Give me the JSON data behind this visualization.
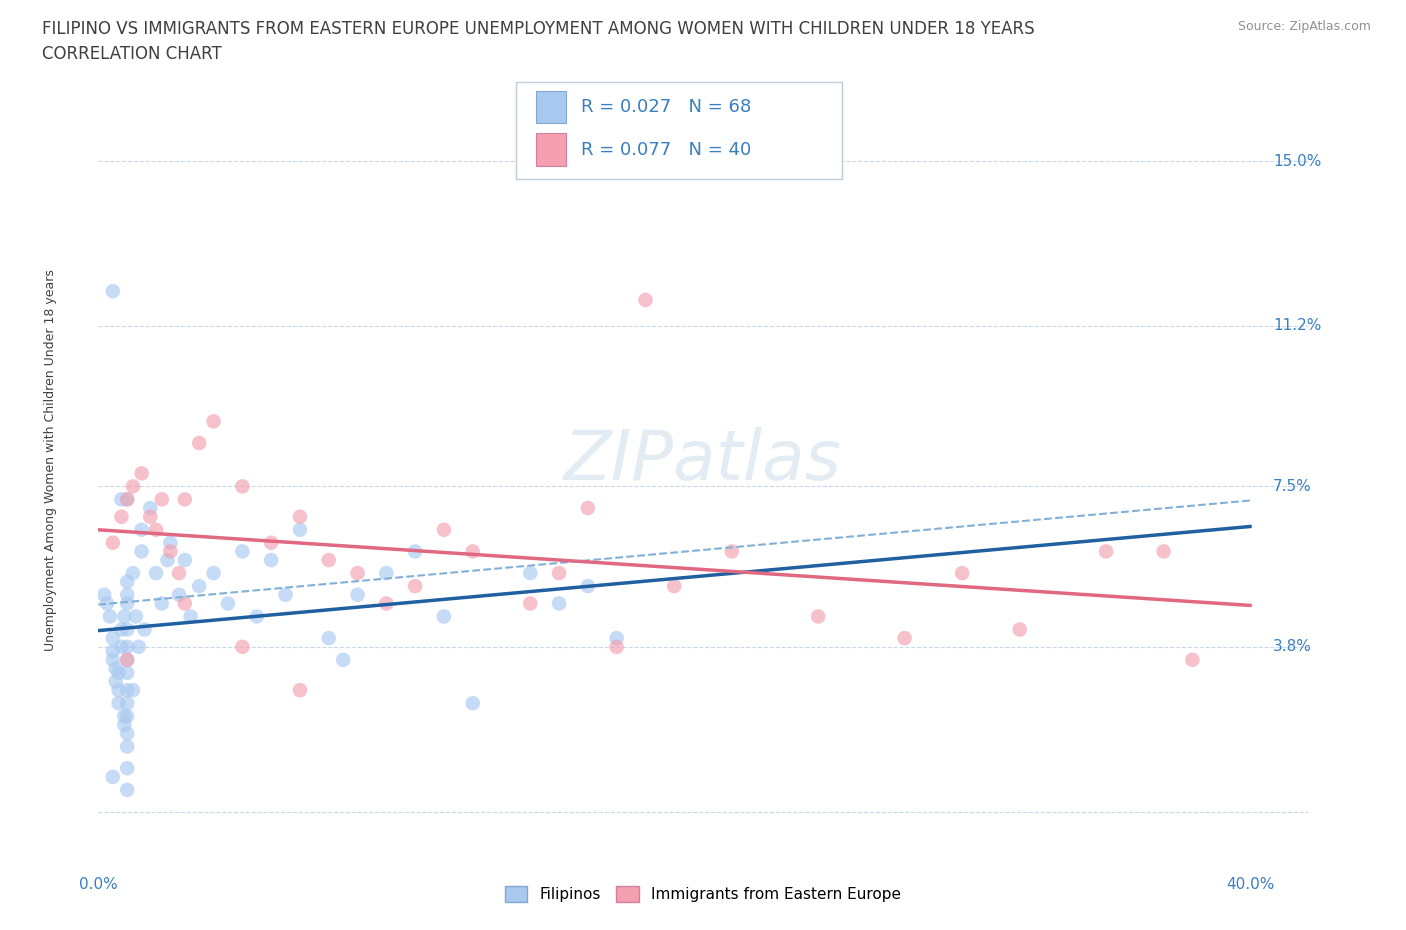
{
  "title_line1": "FILIPINO VS IMMIGRANTS FROM EASTERN EUROPE UNEMPLOYMENT AMONG WOMEN WITH CHILDREN UNDER 18 YEARS",
  "title_line2": "CORRELATION CHART",
  "source_text": "Source: ZipAtlas.com",
  "ylabel": "Unemployment Among Women with Children Under 18 years",
  "xlim": [
    0.0,
    0.42
  ],
  "ylim": [
    -0.008,
    0.17
  ],
  "yticks": [
    0.0,
    0.038,
    0.075,
    0.112,
    0.15
  ],
  "ytick_labels": [
    "",
    "3.8%",
    "7.5%",
    "11.2%",
    "15.0%"
  ],
  "watermark": "ZIPatlas",
  "color_filipino": "#a8c8f0",
  "color_eastern": "#f4a0b0",
  "color_blue_text": "#3a7fc1",
  "color_pink_line": "#e06880",
  "color_blue_line": "#2060a0",
  "color_blue_dashed": "#80b0d8",
  "filipinos_x": [
    0.002,
    0.003,
    0.004,
    0.005,
    0.005,
    0.005,
    0.006,
    0.006,
    0.007,
    0.007,
    0.007,
    0.008,
    0.008,
    0.009,
    0.009,
    0.009,
    0.01,
    0.01,
    0.01,
    0.01,
    0.01,
    0.01,
    0.01,
    0.01,
    0.01,
    0.01,
    0.01,
    0.01,
    0.01,
    0.01,
    0.012,
    0.013,
    0.014,
    0.015,
    0.015,
    0.016,
    0.018,
    0.02,
    0.022,
    0.024,
    0.025,
    0.028,
    0.03,
    0.032,
    0.035,
    0.04,
    0.045,
    0.05,
    0.055,
    0.06,
    0.065,
    0.07,
    0.08,
    0.085,
    0.09,
    0.1,
    0.11,
    0.12,
    0.13,
    0.15,
    0.16,
    0.17,
    0.18,
    0.005,
    0.005,
    0.008,
    0.01,
    0.012
  ],
  "filipinos_y": [
    0.05,
    0.048,
    0.045,
    0.04,
    0.037,
    0.035,
    0.033,
    0.03,
    0.028,
    0.025,
    0.032,
    0.038,
    0.042,
    0.02,
    0.022,
    0.045,
    0.053,
    0.05,
    0.048,
    0.042,
    0.038,
    0.035,
    0.032,
    0.028,
    0.025,
    0.022,
    0.018,
    0.015,
    0.01,
    0.005,
    0.055,
    0.045,
    0.038,
    0.06,
    0.065,
    0.042,
    0.07,
    0.055,
    0.048,
    0.058,
    0.062,
    0.05,
    0.058,
    0.045,
    0.052,
    0.055,
    0.048,
    0.06,
    0.045,
    0.058,
    0.05,
    0.065,
    0.04,
    0.035,
    0.05,
    0.055,
    0.06,
    0.045,
    0.025,
    0.055,
    0.048,
    0.052,
    0.04,
    0.12,
    0.008,
    0.072,
    0.072,
    0.028
  ],
  "eastern_x": [
    0.005,
    0.008,
    0.01,
    0.012,
    0.015,
    0.018,
    0.02,
    0.022,
    0.025,
    0.028,
    0.03,
    0.035,
    0.04,
    0.05,
    0.06,
    0.07,
    0.08,
    0.09,
    0.1,
    0.11,
    0.12,
    0.13,
    0.15,
    0.16,
    0.17,
    0.18,
    0.2,
    0.22,
    0.25,
    0.28,
    0.3,
    0.32,
    0.35,
    0.37,
    0.38,
    0.03,
    0.05,
    0.07,
    0.19,
    0.01
  ],
  "eastern_y": [
    0.062,
    0.068,
    0.072,
    0.075,
    0.078,
    0.068,
    0.065,
    0.072,
    0.06,
    0.055,
    0.072,
    0.085,
    0.09,
    0.075,
    0.062,
    0.068,
    0.058,
    0.055,
    0.048,
    0.052,
    0.065,
    0.06,
    0.048,
    0.055,
    0.07,
    0.038,
    0.052,
    0.06,
    0.045,
    0.04,
    0.055,
    0.042,
    0.06,
    0.06,
    0.035,
    0.048,
    0.038,
    0.028,
    0.118,
    0.035
  ],
  "grid_color": "#c8d8e8",
  "background_color": "#ffffff",
  "title_color": "#404040",
  "title_fontsize": 12,
  "subtitle_fontsize": 12,
  "axis_label_fontsize": 9,
  "tick_fontsize": 11,
  "legend_fontsize": 13,
  "scatter_size": 110,
  "scatter_alpha": 0.65
}
